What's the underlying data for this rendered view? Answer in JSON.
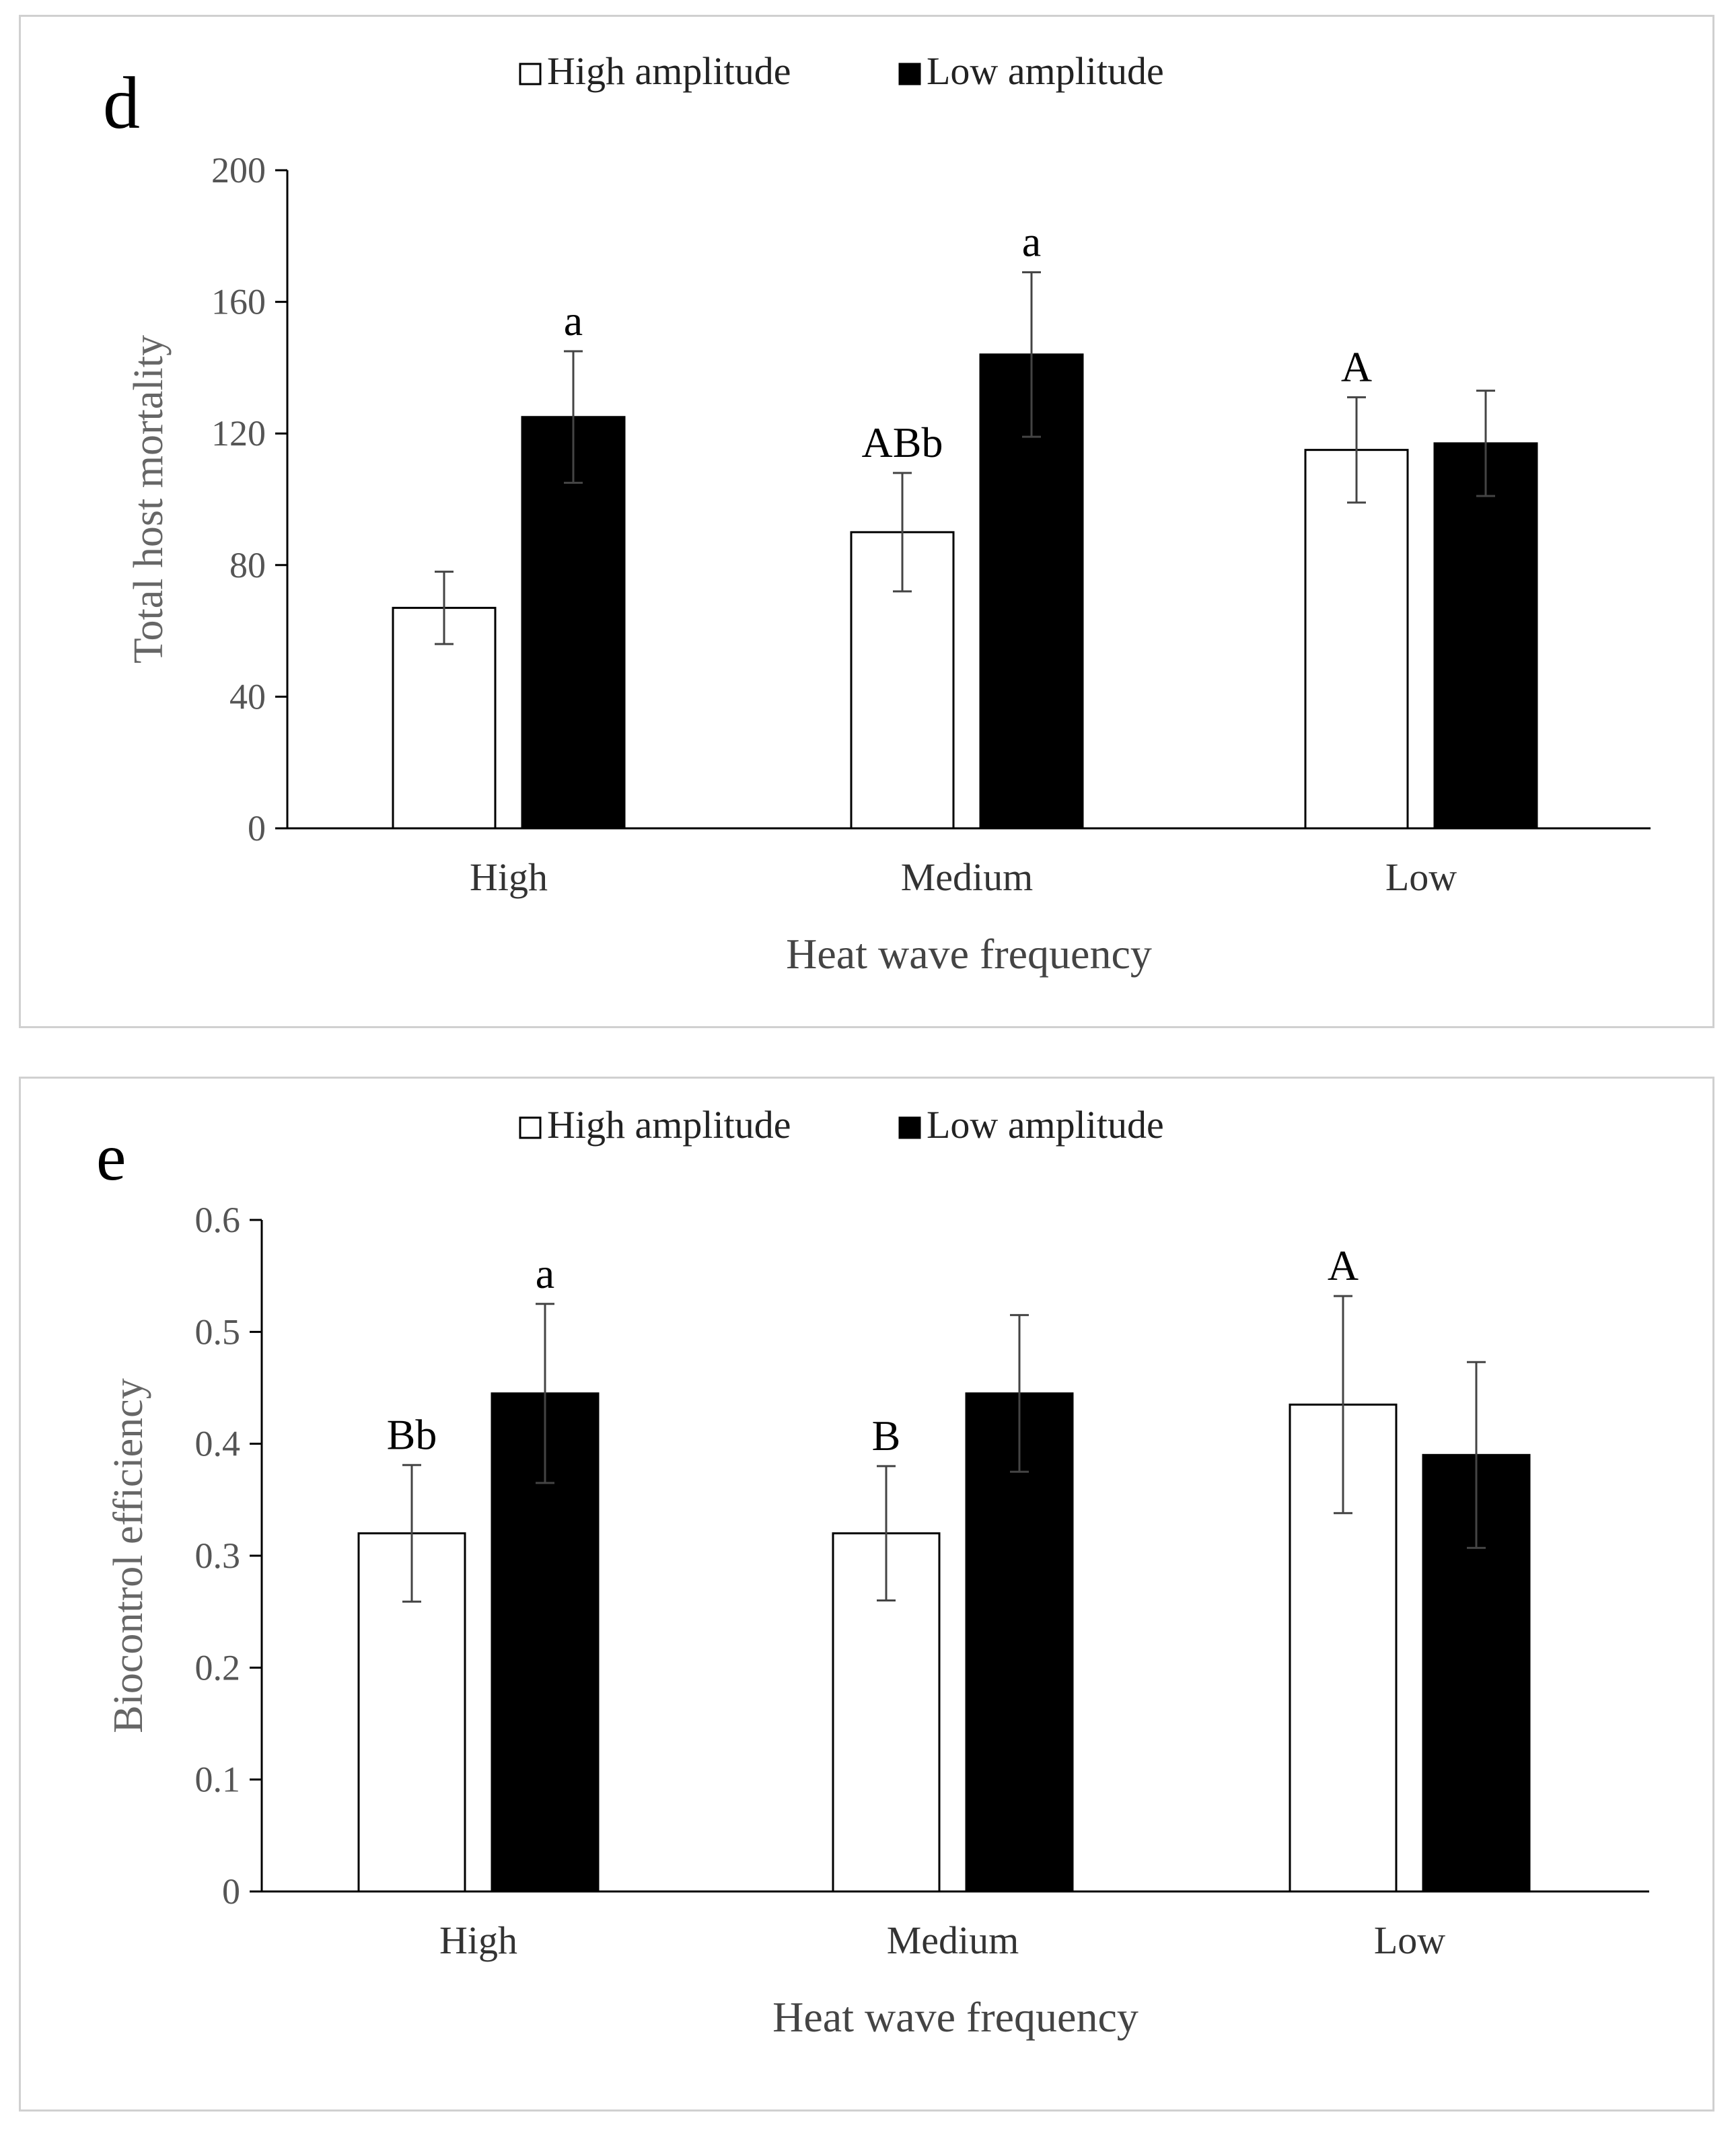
{
  "chart_data": [
    {
      "type": "bar",
      "panel_label": "d",
      "legend": [
        "High amplitude",
        "Low amplitude"
      ],
      "categories": [
        "High",
        "Medium",
        "Low"
      ],
      "xlabel": "Heat wave frequency",
      "ylabel": "Total host mortality",
      "ylim": [
        0,
        200
      ],
      "yticks": [
        0,
        40,
        80,
        120,
        160,
        200
      ],
      "series": [
        {
          "name": "High amplitude",
          "color": "#ffffff",
          "values": [
            67,
            90,
            115
          ],
          "errors": [
            11,
            18,
            16
          ],
          "letters": [
            "",
            "ABb",
            "A"
          ]
        },
        {
          "name": "Low amplitude",
          "color": "#000000",
          "values": [
            125,
            144,
            117
          ],
          "errors": [
            20,
            25,
            16
          ],
          "letters": [
            "a",
            "a",
            ""
          ]
        }
      ]
    },
    {
      "type": "bar",
      "panel_label": "e",
      "legend": [
        "High amplitude",
        "Low amplitude"
      ],
      "categories": [
        "High",
        "Medium",
        "Low"
      ],
      "xlabel": "Heat wave frequency",
      "ylabel": "Biocontrol efficiency",
      "ylim": [
        0,
        0.6
      ],
      "yticks": [
        0,
        0.1,
        0.2,
        0.3,
        0.4,
        0.5,
        0.6
      ],
      "series": [
        {
          "name": "High amplitude",
          "color": "#ffffff",
          "values": [
            0.32,
            0.32,
            0.435
          ],
          "errors": [
            0.061,
            0.06,
            0.097
          ],
          "letters": [
            "Bb",
            "B",
            "A"
          ]
        },
        {
          "name": "Low amplitude",
          "color": "#000000",
          "values": [
            0.445,
            0.445,
            0.39
          ],
          "errors": [
            0.08,
            0.07,
            0.083
          ],
          "letters": [
            "a",
            "",
            ""
          ]
        }
      ]
    }
  ]
}
